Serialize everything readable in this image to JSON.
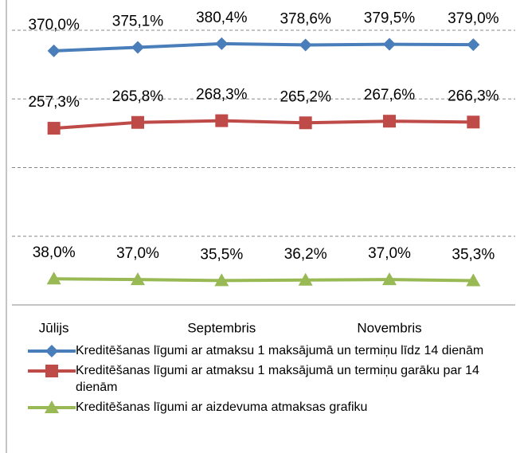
{
  "chart_data": {
    "type": "line",
    "categories": [
      "Jūlijs",
      null,
      "Septembris",
      null,
      "Novembris",
      null
    ],
    "ylim": [
      0,
      400
    ],
    "yticks": [
      0,
      100,
      200,
      300,
      400
    ],
    "grid": true,
    "series": [
      {
        "name": "Kreditēšanas līgumi ar atmaksu 1 maksājumā un termiņu līdz 14 dienām",
        "color": "#4a7ebb",
        "marker": "diamond",
        "values": [
          370.0,
          375.1,
          380.4,
          378.6,
          379.5,
          379.0
        ],
        "value_labels": [
          "370,0%",
          "375,1%",
          "380,4%",
          "378,6%",
          "379,5%",
          "379,0%"
        ]
      },
      {
        "name": "Kreditēšanas līgumi ar atmaksu 1 maksājumā un termiņu garāku par 14 dienām",
        "color": "#be4b48",
        "marker": "square",
        "values": [
          257.3,
          265.8,
          268.3,
          265.2,
          267.6,
          266.3
        ],
        "value_labels": [
          "257,3%",
          "265,8%",
          "268,3%",
          "265,2%",
          "267,6%",
          "266,3%"
        ]
      },
      {
        "name": "Kreditēšanas līgumi ar aizdevuma atmaksas grafiku",
        "color": "#98b954",
        "marker": "triangle",
        "values": [
          38.0,
          37.0,
          35.5,
          36.2,
          37.0,
          35.3
        ],
        "value_labels": [
          "38,0%",
          "37,0%",
          "35,5%",
          "36,2%",
          "37,0%",
          "35,3%"
        ]
      }
    ]
  }
}
